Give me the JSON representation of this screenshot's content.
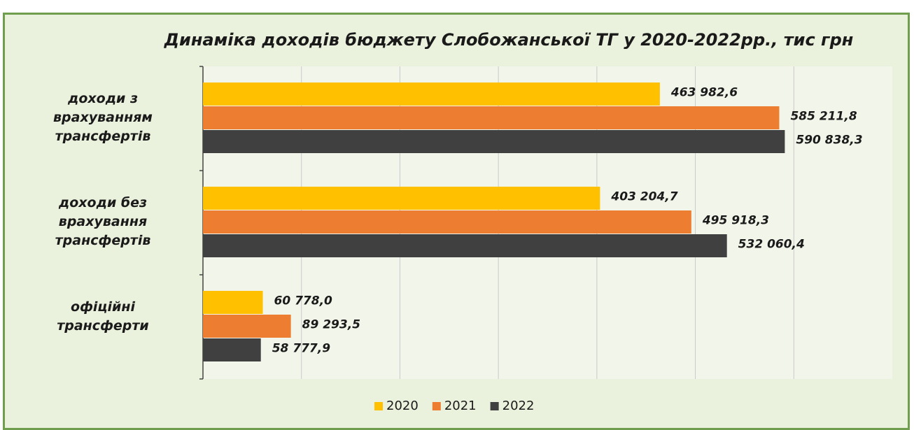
{
  "chart_data": {
    "type": "barh",
    "title": "Динаміка доходів бюджету Слобожанської ТГ у  2020-2022рр., тис грн",
    "categories": [
      "доходи з\nврахуванням\nтрансфертів",
      "доходи без\nврахування\nтрансфертів",
      "офіційні\nтрансферти"
    ],
    "series": [
      {
        "name": "2020",
        "color": "#ffc000",
        "values": [
          463982.6,
          403204.7,
          60778.0
        ],
        "value_labels": [
          "463 982,6",
          "403 204,7",
          "60 778,0"
        ]
      },
      {
        "name": "2021",
        "color": "#ed7d31",
        "values": [
          585211.8,
          495918.3,
          89293.5
        ],
        "value_labels": [
          "585 211,8",
          "495 918,3",
          "89 293,5"
        ]
      },
      {
        "name": "2022",
        "color": "#404040",
        "values": [
          590838.3,
          532060.4,
          58777.9
        ],
        "value_labels": [
          "590 838,3",
          "532 060,4",
          "58 777,9"
        ]
      }
    ],
    "xlim": [
      0,
      700000
    ],
    "xticks": [
      0,
      100000,
      200000,
      300000,
      400000,
      500000,
      600000
    ],
    "grid": true,
    "legend": "bottom"
  }
}
